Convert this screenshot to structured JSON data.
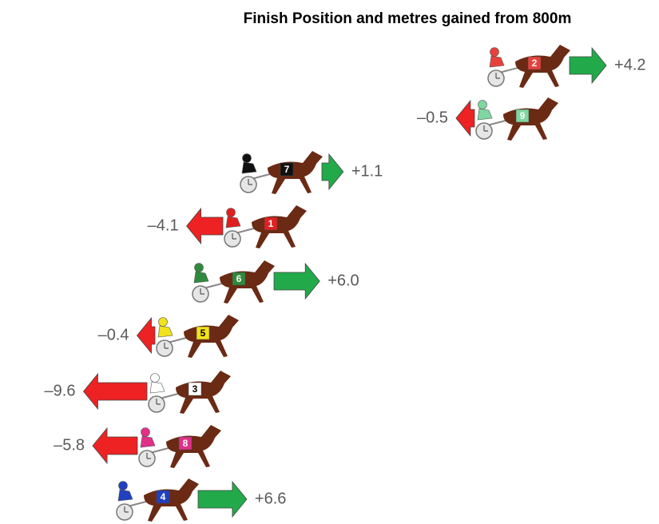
{
  "chart_data": {
    "type": "horse-gain",
    "title": "Finish Position and metres gained from 800m",
    "categories": [
      "2",
      "9",
      "7",
      "1",
      "6",
      "5",
      "3",
      "8",
      "4"
    ],
    "values": [
      4.2,
      -0.5,
      1.1,
      -4.1,
      6.0,
      -0.4,
      -9.6,
      -5.8,
      6.6
    ],
    "value_labels": [
      "+4.2",
      "–0.5",
      "+1.1",
      "–4.1",
      "+6.0",
      "–0.4",
      "–9.6",
      "–5.8",
      "+6.6"
    ],
    "colors": [
      "#e8413c",
      "#7fd6a0",
      "#111111",
      "#e02020",
      "#2e8b3c",
      "#f2e21a",
      "#ffffff",
      "#e0308a",
      "#2040c0"
    ],
    "gain_color": "#22aa4a",
    "loss_color": "#ee2222"
  }
}
